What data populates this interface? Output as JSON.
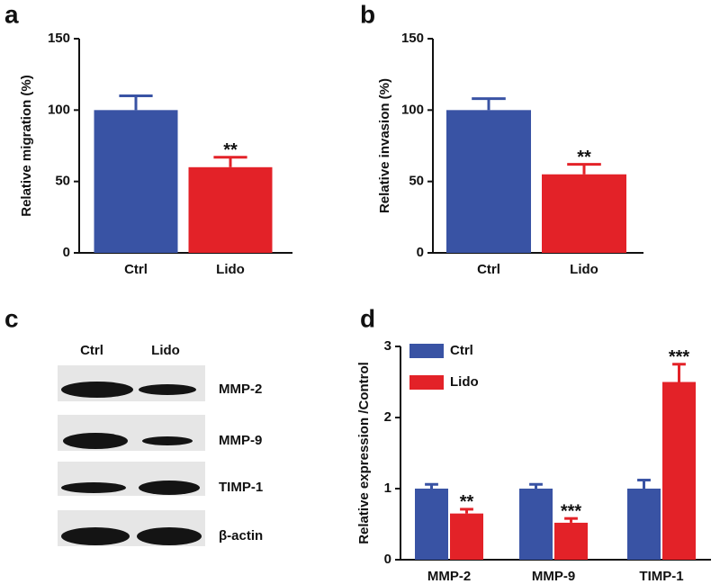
{
  "chart_data": [
    {
      "type": "bar",
      "letter": "a",
      "ylabel": "Relative migration (%)",
      "categories": [
        "Ctrl",
        "Lido"
      ],
      "values": [
        100,
        60
      ],
      "errors": [
        10,
        7
      ],
      "colors": [
        "#3953a4",
        "#e32228"
      ],
      "annotations": [
        null,
        "**"
      ],
      "ylim": [
        0,
        150
      ],
      "yticks": [
        0,
        50,
        100,
        150
      ]
    },
    {
      "type": "bar",
      "letter": "b",
      "ylabel": "Relative invasion (%)",
      "categories": [
        "Ctrl",
        "Lido"
      ],
      "values": [
        100,
        55
      ],
      "errors": [
        8,
        7
      ],
      "colors": [
        "#3953a4",
        "#e32228"
      ],
      "annotations": [
        null,
        "**"
      ],
      "ylim": [
        0,
        150
      ],
      "yticks": [
        0,
        50,
        100,
        150
      ]
    },
    {
      "type": "bar",
      "letter": "d",
      "ylabel": "Relative expression /Control",
      "categories": [
        "MMP-2",
        "MMP-9",
        "TIMP-1"
      ],
      "series": [
        {
          "name": "Ctrl",
          "color": "#3953a4",
          "values": [
            1,
            1,
            1
          ],
          "errors": [
            0.06,
            0.06,
            0.12
          ]
        },
        {
          "name": "Lido",
          "color": "#e32228",
          "values": [
            0.65,
            0.52,
            2.5
          ],
          "errors": [
            0.06,
            0.06,
            0.25
          ],
          "annotations": [
            "**",
            "***",
            "***"
          ]
        }
      ],
      "ylim": [
        0,
        3
      ],
      "yticks": [
        0,
        1,
        2,
        3
      ],
      "legend": "top-left"
    }
  ],
  "blot": {
    "letter": "c",
    "columns": [
      "Ctrl",
      "Lido"
    ],
    "rows": [
      "MMP-2",
      "MMP-9",
      "TIMP-1",
      "β-actin"
    ]
  }
}
